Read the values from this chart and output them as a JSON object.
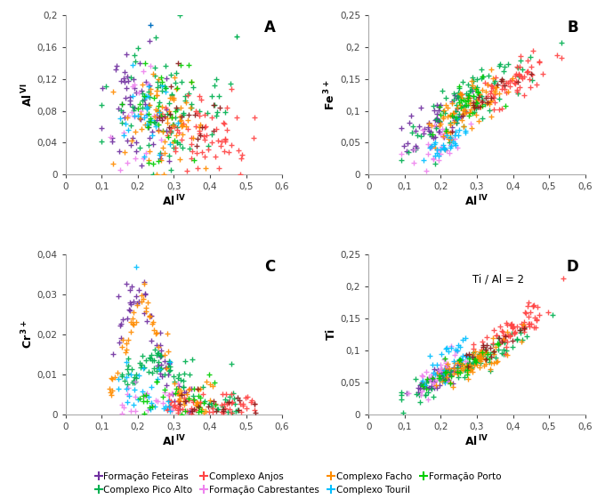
{
  "colors": {
    "feteiras": "#7030A0",
    "pico_alto": "#00B050",
    "anjos": "#FF4444",
    "cabrestantes": "#EE82EE",
    "facho": "#FF8C00",
    "touril": "#00BFFF",
    "porto": "#00CD00",
    "porto_dark": "#8B1A1A"
  },
  "legend": [
    {
      "key": "feteiras",
      "label": "Formação Feteiras"
    },
    {
      "key": "pico_alto",
      "label": "Complexo Pico Alto"
    },
    {
      "key": "anjos",
      "label": "Complexo Anjos"
    },
    {
      "key": "cabrestantes",
      "label": "Formação Cabrestantes"
    },
    {
      "key": "facho",
      "label": "Complexo Facho"
    },
    {
      "key": "touril",
      "label": "Complexo Touril"
    },
    {
      "key": "porto",
      "label": "Formação Porto"
    }
  ],
  "xlim": [
    0,
    0.6
  ],
  "xticks": [
    0,
    0.1,
    0.2,
    0.3,
    0.4,
    0.5,
    0.6
  ],
  "ylim_A": [
    0,
    0.2
  ],
  "yticks_A": [
    0,
    0.04,
    0.08,
    0.12,
    0.16,
    0.2
  ],
  "ylim_B": [
    0,
    0.25
  ],
  "yticks_B": [
    0,
    0.05,
    0.1,
    0.15,
    0.2,
    0.25
  ],
  "ylim_C": [
    0,
    0.04
  ],
  "yticks_C": [
    0,
    0.01,
    0.02,
    0.03,
    0.04
  ],
  "ylim_D": [
    0,
    0.25
  ],
  "yticks_D": [
    0,
    0.05,
    0.1,
    0.15,
    0.2,
    0.25
  ]
}
